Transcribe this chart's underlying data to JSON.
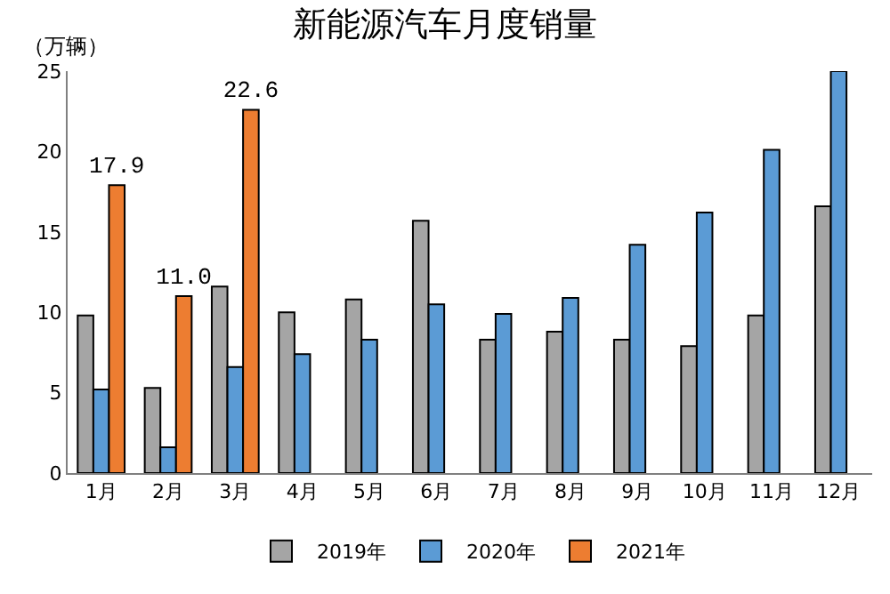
{
  "chart_data": {
    "type": "bar",
    "title": "新能源汽车月度销量",
    "ylabel": "（万辆）",
    "categories": [
      "1月",
      "2月",
      "3月",
      "4月",
      "5月",
      "6月",
      "7月",
      "8月",
      "9月",
      "10月",
      "11月",
      "12月"
    ],
    "series": [
      {
        "name": "2019年",
        "color": "#a5a5a5",
        "values": [
          9.8,
          5.3,
          11.6,
          10.0,
          10.8,
          15.7,
          8.3,
          8.8,
          8.3,
          7.9,
          9.8,
          16.6
        ]
      },
      {
        "name": "2020年",
        "color": "#5b9bd5",
        "values": [
          5.2,
          1.6,
          6.6,
          7.4,
          8.3,
          10.5,
          9.9,
          10.9,
          14.2,
          16.2,
          20.1,
          25.0
        ]
      },
      {
        "name": "2021年",
        "color": "#ed7d31",
        "values": [
          17.9,
          11.0,
          22.6,
          null,
          null,
          null,
          null,
          null,
          null,
          null,
          null,
          null
        ],
        "value_labels": [
          "17.9",
          "11.0",
          "22.6",
          null,
          null,
          null,
          null,
          null,
          null,
          null,
          null,
          null
        ]
      }
    ],
    "ylim": [
      0,
      25
    ],
    "yticks": [
      0,
      5,
      10,
      15,
      20,
      25
    ],
    "legend": "bottom"
  }
}
